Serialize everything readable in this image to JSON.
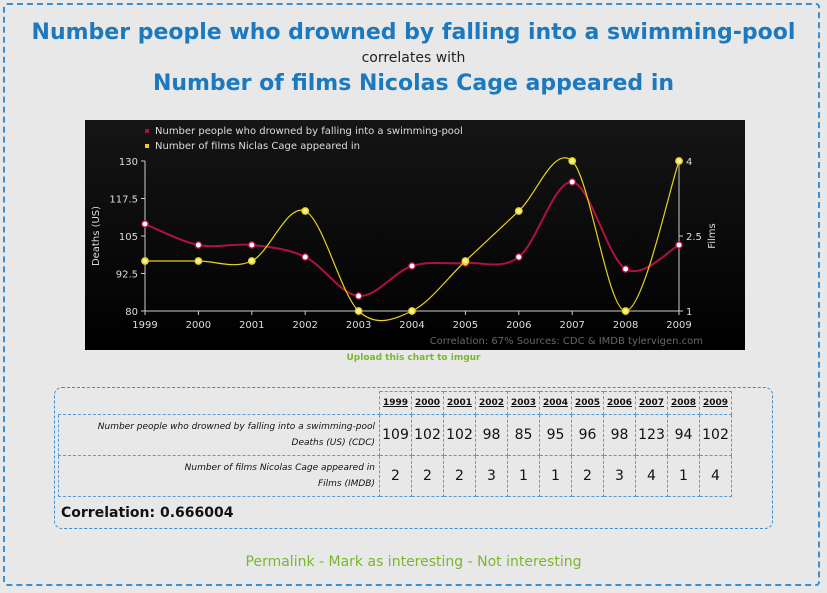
{
  "header": {
    "title1": "Number people who drowned by falling into a swimming-pool",
    "correlates": "correlates with",
    "title2": "Number of films Nicolas Cage appeared in"
  },
  "chart_data": {
    "type": "line",
    "x": [
      "1999",
      "2000",
      "2001",
      "2002",
      "2003",
      "2004",
      "2005",
      "2006",
      "2007",
      "2008",
      "2009"
    ],
    "series": [
      {
        "name": "Number people who drowned by falling into a swimming-pool",
        "axis": "left",
        "color": "#b0123f",
        "values": [
          109,
          102,
          102,
          98,
          85,
          95,
          96,
          98,
          123,
          94,
          102
        ]
      },
      {
        "name": "Number of films Niclas Cage appeared in",
        "axis": "right",
        "color": "#e6d31a",
        "values": [
          2,
          2,
          2,
          3,
          1,
          1,
          2,
          3,
          4,
          1,
          4
        ]
      }
    ],
    "ylabel_left": "Deaths (US)",
    "ylabel_right": "Films",
    "yticks_left": [
      "80",
      "92.5",
      "105",
      "117.5",
      "130"
    ],
    "ylim_left": [
      80,
      130
    ],
    "yticks_right": [
      "1",
      "2.5",
      "4"
    ],
    "ylim_right": [
      1,
      4
    ],
    "footer": "Correlation: 67%    Sources: CDC & IMDB    tylervigen.com",
    "grid": false,
    "legend": "top-left"
  },
  "upload_link": "Upload this chart to imgur",
  "table": {
    "years": [
      "1999",
      "2000",
      "2001",
      "2002",
      "2003",
      "2004",
      "2005",
      "2006",
      "2007",
      "2008",
      "2009"
    ],
    "rows": [
      {
        "label": "Number people who drowned by falling into a swimming-pool",
        "unit": "Deaths (US) (CDC)",
        "values": [
          "109",
          "102",
          "102",
          "98",
          "85",
          "95",
          "96",
          "98",
          "123",
          "94",
          "102"
        ]
      },
      {
        "label": "Number of films Nicolas Cage appeared in",
        "unit": "Films (IMDB)",
        "values": [
          "2",
          "2",
          "2",
          "3",
          "1",
          "1",
          "2",
          "3",
          "4",
          "1",
          "4"
        ]
      }
    ],
    "correlation": "Correlation: 0.666004"
  },
  "links": {
    "permalink": "Permalink",
    "sep": " - ",
    "interesting": "Mark as interesting",
    "not_interesting": "Not interesting"
  }
}
